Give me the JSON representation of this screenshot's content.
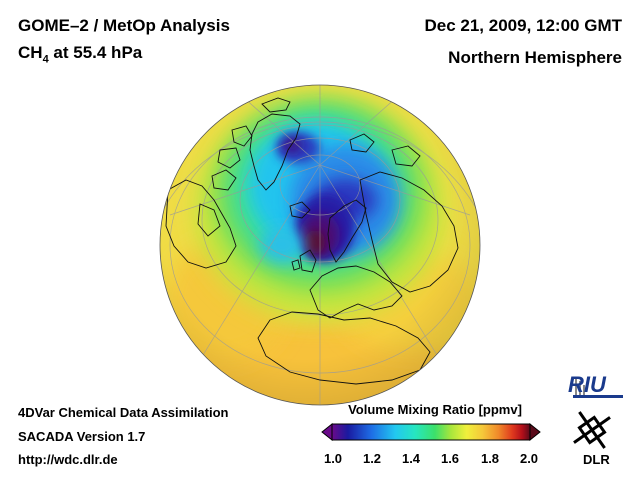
{
  "header": {
    "title": "GOME–2 / MetOp Analysis",
    "species_main": "CH",
    "species_sub": "4",
    "species_rest": " at 55.4 hPa",
    "datetime": "Dec 21, 2009, 12:00 GMT",
    "region": "Northern Hemisphere"
  },
  "footer": {
    "line1": "4DVar Chemical Data Assimilation",
    "line2": "SACADA Version 1.7",
    "line3": "http://wdc.dlr.de"
  },
  "colorbar": {
    "title": "Volume Mixing Ratio [ppmv]",
    "ticks": [
      "1.0",
      "1.2",
      "1.4",
      "1.6",
      "1.8",
      "2.0"
    ],
    "min": 1.0,
    "max": 2.0,
    "colors": [
      "#6a0a8a",
      "#1a1aa0",
      "#1e6ee6",
      "#22c8f0",
      "#26e6c0",
      "#3ce06a",
      "#a8e63c",
      "#f0f03c",
      "#f5c83a",
      "#f08a2a",
      "#e03a1e",
      "#b40f1a",
      "#5a0a1a"
    ]
  },
  "logos": {
    "riu": "RIU",
    "dlr": "DLR"
  },
  "icons": [
    "globe-map",
    "riu-logo",
    "dlr-logo-icon"
  ]
}
